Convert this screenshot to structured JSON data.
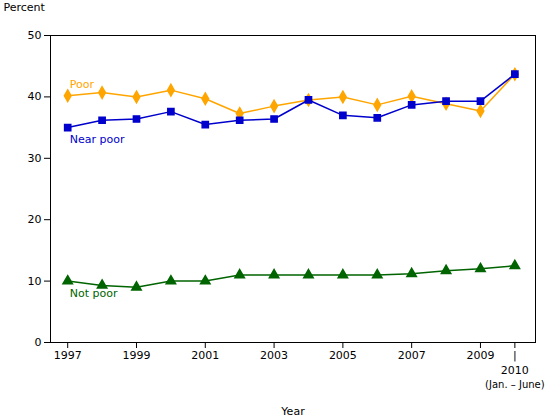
{
  "chart_data": {
    "type": "line",
    "x": [
      1997,
      1998,
      1999,
      2000,
      2001,
      2002,
      2003,
      2004,
      2005,
      2006,
      2007,
      2008,
      2009,
      2010
    ],
    "series": [
      {
        "name": "Poor",
        "color": "#FFA500",
        "marker": "diamond",
        "values": [
          40.2,
          40.7,
          40.0,
          41.1,
          39.7,
          37.3,
          38.5,
          39.5,
          40.0,
          38.7,
          40.1,
          38.9,
          37.7,
          43.7
        ]
      },
      {
        "name": "Near poor",
        "color": "#0000CD",
        "marker": "square",
        "values": [
          35.0,
          36.2,
          36.4,
          37.6,
          35.5,
          36.2,
          36.4,
          39.5,
          37.0,
          36.6,
          38.7,
          39.3,
          39.3,
          43.7
        ]
      },
      {
        "name": "Not poor",
        "color": "#006400",
        "marker": "triangle",
        "values": [
          10.0,
          9.3,
          9.0,
          10.0,
          10.0,
          11.0,
          11.0,
          11.0,
          11.0,
          11.0,
          11.2,
          11.7,
          12.0,
          12.5
        ]
      }
    ],
    "xlabel": "Year",
    "ylabel": "Percent",
    "xlim": [
      1996.5,
      2010.6
    ],
    "ylim": [
      0,
      50
    ],
    "xticks": [
      1997,
      1999,
      2001,
      2003,
      2005,
      2007,
      2009,
      {
        "value": 2010,
        "label": "|"
      }
    ],
    "yticks": [
      0,
      10,
      20,
      30,
      40,
      50
    ],
    "annotations": [
      {
        "text": "2010",
        "x": 2010
      },
      {
        "text": "(Jan. – June)",
        "x": 2010
      }
    ],
    "grid": false
  }
}
